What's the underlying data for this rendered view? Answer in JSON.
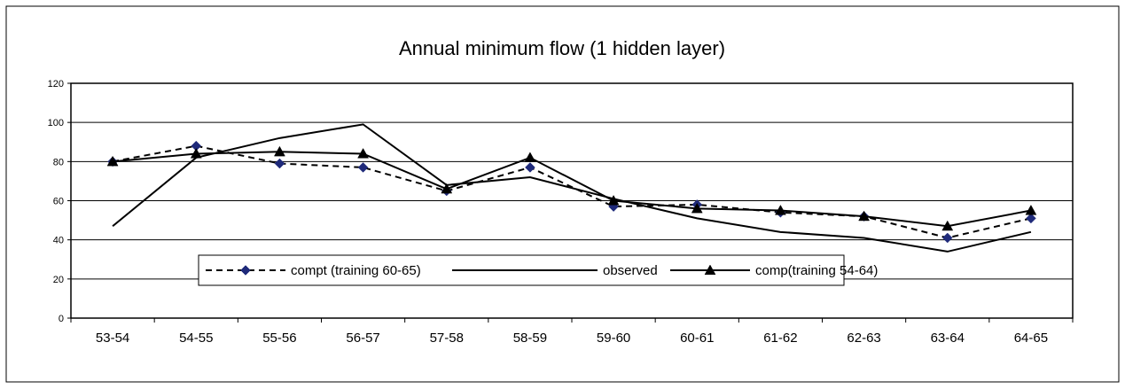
{
  "chart_data": {
    "type": "line",
    "title": "Annual minimum flow (1 hidden layer)",
    "xlabel": "",
    "ylabel": "",
    "ylim": [
      0,
      120
    ],
    "yticks": [
      0,
      20,
      40,
      60,
      80,
      100,
      120
    ],
    "categories": [
      "53-54",
      "54-55",
      "55-56",
      "56-57",
      "57-58",
      "58-59",
      "59-60",
      "60-61",
      "61-62",
      "62-63",
      "63-64",
      "64-65"
    ],
    "grid": true,
    "legend_position": "bottom-center",
    "series": [
      {
        "name": "compt (training 60-65)",
        "style": "dashed",
        "marker": "diamond",
        "line_color": "#000000",
        "marker_color": "#1f2a7a",
        "values": [
          80,
          88,
          79,
          77,
          65,
          77,
          57,
          58,
          54,
          52,
          41,
          51
        ]
      },
      {
        "name": "observed",
        "style": "solid",
        "marker": "none",
        "line_color": "#000000",
        "values": [
          47,
          82,
          92,
          99,
          68,
          72,
          61,
          51,
          44,
          41,
          34,
          44
        ]
      },
      {
        "name": "comp(training 54-64)",
        "style": "solid",
        "marker": "triangle",
        "line_color": "#000000",
        "marker_color": "#000000",
        "values": [
          80,
          84,
          85,
          84,
          66,
          82,
          60,
          56,
          55,
          52,
          47,
          55
        ]
      }
    ]
  }
}
